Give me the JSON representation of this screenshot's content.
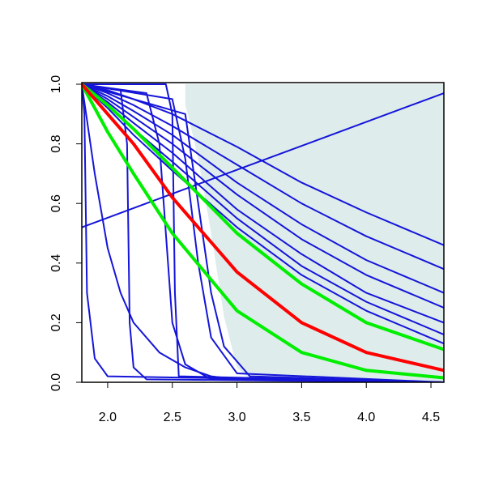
{
  "chart_data": {
    "type": "line",
    "xlim": [
      1.8,
      4.6
    ],
    "ylim": [
      0,
      1
    ],
    "xticks": [
      {
        "value": 2,
        "label": "2.0"
      },
      2.5,
      {
        "value": 3,
        "label": "3.0"
      },
      3.5,
      {
        "value": 4,
        "label": "4.0"
      },
      4.5
    ],
    "yticks": [
      {
        "value": 0,
        "label": "0.0"
      },
      0.2,
      0.4,
      0.6,
      0.8,
      {
        "value": 1,
        "label": "1.0"
      }
    ],
    "band": {
      "color": "#deecec",
      "x": [
        2.6,
        2.6,
        2.62,
        2.7,
        2.8,
        2.9,
        3.0,
        3.1,
        4.6
      ],
      "lower": [
        1,
        0.93,
        0.9,
        0.75,
        0.5,
        0.22,
        0.05,
        0.01,
        0
      ]
    },
    "series": [
      {
        "color": "#1515d9",
        "width": 2,
        "x": [
          1.8,
          2.0,
          2.2,
          2.5,
          3.0,
          3.5,
          4.0,
          4.6
        ],
        "values": [
          1,
          0.98,
          0.95,
          0.9,
          0.79,
          0.67,
          0.57,
          0.46
        ]
      },
      {
        "color": "#1515d9",
        "width": 2,
        "x": [
          1.8,
          2.0,
          2.2,
          2.5,
          3.0,
          3.5,
          4.0,
          4.6
        ],
        "values": [
          1,
          0.97,
          0.93,
          0.86,
          0.73,
          0.6,
          0.49,
          0.38
        ]
      },
      {
        "color": "#1515d9",
        "width": 2,
        "x": [
          1.8,
          2.0,
          2.2,
          2.5,
          3.0,
          3.5,
          4.0,
          4.6
        ],
        "values": [
          1,
          0.96,
          0.91,
          0.83,
          0.67,
          0.53,
          0.41,
          0.3
        ]
      },
      {
        "color": "#1515d9",
        "width": 2,
        "x": [
          1.8,
          2.0,
          2.2,
          2.5,
          3.0,
          3.5,
          4.0,
          4.6
        ],
        "values": [
          1,
          0.95,
          0.89,
          0.8,
          0.63,
          0.48,
          0.36,
          0.25
        ]
      },
      {
        "color": "#1515d9",
        "width": 2,
        "x": [
          1.8,
          2.0,
          2.2,
          2.5,
          3.0,
          3.5,
          4.0,
          4.6
        ],
        "values": [
          1,
          0.94,
          0.87,
          0.77,
          0.58,
          0.43,
          0.3,
          0.2
        ]
      },
      {
        "color": "#1515d9",
        "width": 2,
        "x": [
          1.8,
          2.0,
          2.2,
          2.5,
          3.0,
          3.5,
          4.0,
          4.6
        ],
        "values": [
          1,
          0.93,
          0.85,
          0.74,
          0.55,
          0.39,
          0.27,
          0.16
        ]
      },
      {
        "color": "#1515d9",
        "width": 2,
        "x": [
          1.8,
          2.0,
          2.2,
          2.5,
          3.0,
          3.5,
          4.0,
          4.6
        ],
        "values": [
          1,
          0.92,
          0.83,
          0.71,
          0.52,
          0.36,
          0.24,
          0.13
        ]
      },
      {
        "color": "#1515d9",
        "width": 2,
        "x": [
          1.8,
          1.82,
          1.84,
          1.9,
          2.0,
          4.6
        ],
        "values": [
          1,
          0.9,
          0.3,
          0.08,
          0.02,
          0
        ]
      },
      {
        "color": "#1515d9",
        "width": 2,
        "x": [
          1.8,
          2.1,
          2.15,
          2.17,
          2.2,
          2.3,
          4.6
        ],
        "values": [
          1,
          0.98,
          0.8,
          0.2,
          0.05,
          0.01,
          0
        ]
      },
      {
        "color": "#1515d9",
        "width": 2,
        "x": [
          1.8,
          2.3,
          2.4,
          2.45,
          2.5,
          2.6,
          2.8,
          4.6
        ],
        "values": [
          1,
          0.97,
          0.8,
          0.5,
          0.2,
          0.06,
          0.01,
          0
        ]
      },
      {
        "color": "#1515d9",
        "width": 2,
        "x": [
          1.8,
          2.45,
          2.5,
          2.52,
          2.55,
          4.6
        ],
        "values": [
          1,
          1,
          0.9,
          0.3,
          0.02,
          0
        ]
      },
      {
        "color": "#1515d9",
        "width": 2,
        "x": [
          1.8,
          2.5,
          2.6,
          2.7,
          2.8,
          3.0,
          4.6
        ],
        "values": [
          1,
          0.95,
          0.75,
          0.4,
          0.15,
          0.03,
          0
        ]
      },
      {
        "color": "#1515d9",
        "width": 2,
        "x": [
          1.8,
          2.6,
          2.7,
          2.8,
          2.9,
          3.1,
          4.6
        ],
        "values": [
          1,
          0.9,
          0.6,
          0.3,
          0.12,
          0.02,
          0
        ]
      },
      {
        "color": "#1515d9",
        "width": 2,
        "x": [
          1.8,
          1.9,
          2.0,
          2.1,
          2.2,
          2.4,
          2.6,
          2.8,
          3.0,
          4.6
        ],
        "values": [
          1,
          0.7,
          0.45,
          0.3,
          0.2,
          0.1,
          0.05,
          0.02,
          0.01,
          0
        ]
      },
      {
        "color": "#1515d9",
        "width": 2,
        "x": [
          1.8,
          4.6
        ],
        "values": [
          0.52,
          0.97
        ]
      },
      {
        "color": "#00ee00",
        "width": 4,
        "x": [
          1.8,
          2.0,
          2.2,
          2.5,
          3.0,
          3.5,
          4.0,
          4.6
        ],
        "values": [
          1,
          0.93,
          0.85,
          0.72,
          0.5,
          0.33,
          0.2,
          0.11
        ]
      },
      {
        "color": "#00ee00",
        "width": 4,
        "x": [
          1.8,
          2.0,
          2.2,
          2.5,
          3.0,
          3.5,
          4.0,
          4.6
        ],
        "values": [
          1,
          0.84,
          0.7,
          0.5,
          0.24,
          0.1,
          0.04,
          0.015
        ]
      },
      {
        "color": "#ff0000",
        "width": 4,
        "x": [
          1.8,
          2.0,
          2.2,
          2.5,
          3.0,
          3.5,
          4.0,
          4.6
        ],
        "values": [
          1,
          0.9,
          0.8,
          0.62,
          0.37,
          0.2,
          0.1,
          0.04
        ]
      }
    ]
  }
}
